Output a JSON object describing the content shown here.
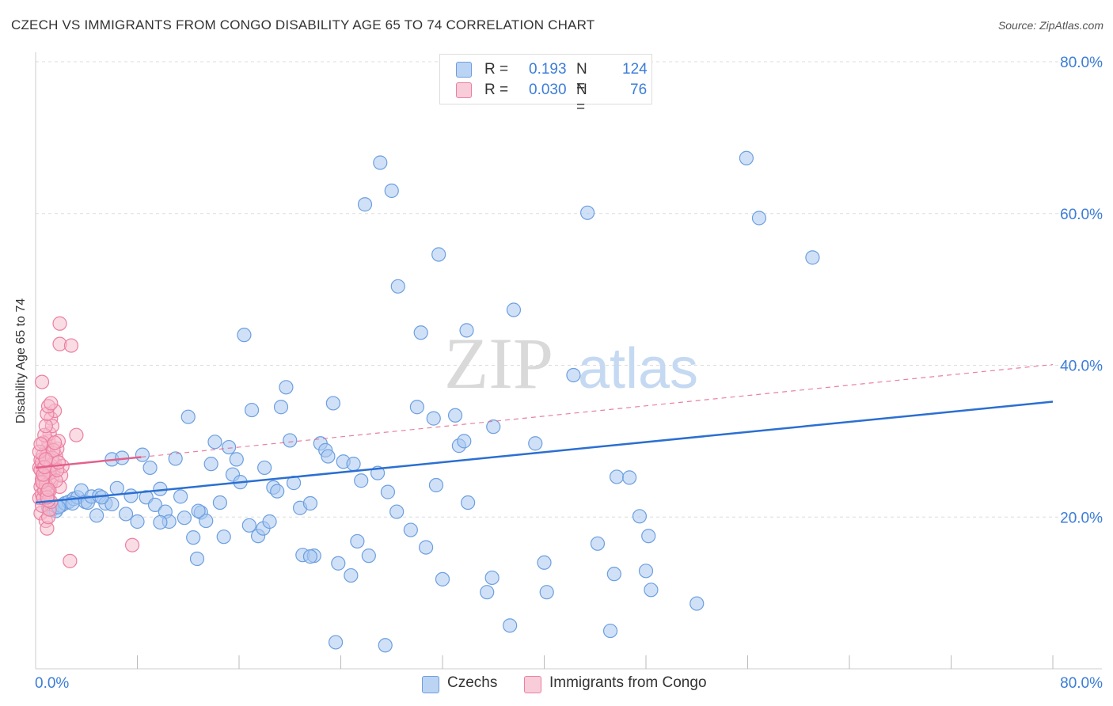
{
  "header": {
    "title": "CZECH VS IMMIGRANTS FROM CONGO DISABILITY AGE 65 TO 74 CORRELATION CHART",
    "source": "Source: ZipAtlas.com"
  },
  "legend": {
    "czech": {
      "r_label": "R =",
      "r_value": "0.193",
      "n_label": "N =",
      "n_value": "124"
    },
    "congo": {
      "r_label": "R =",
      "r_value": "0.030",
      "n_label": "N =",
      "n_value": "76"
    }
  },
  "bottom_legend": {
    "czech": "Czechs",
    "congo": "Immigrants from Congo"
  },
  "watermark": {
    "zip": "ZIP",
    "atlas": "atlas"
  },
  "colors": {
    "czech_fill": "#a9c8f0",
    "czech_stroke": "#6c9fe0",
    "czech_line": "#2b6fd1",
    "congo_fill": "#f6b9cc",
    "congo_stroke": "#ec7fa0",
    "congo_line": "#e3608c",
    "axis_text": "#3b7dd8"
  },
  "chart_data": {
    "type": "scatter",
    "title": "CZECH VS IMMIGRANTS FROM CONGO DISABILITY AGE 65 TO 74 CORRELATION CHART",
    "xlabel": "",
    "ylabel": "Disability Age 65 to 74",
    "xlim": [
      0,
      80
    ],
    "ylim": [
      0,
      80
    ],
    "x_tick_labels": [
      "0.0%",
      "80.0%"
    ],
    "y_tick_labels": [
      "20.0%",
      "40.0%",
      "60.0%",
      "80.0%"
    ],
    "y_ticks": [
      20,
      40,
      60,
      80
    ],
    "grid": true,
    "legend_placement": "top-center",
    "series": [
      {
        "name": "Czechs",
        "r": 0.193,
        "n": 124,
        "trend": {
          "x": [
            0,
            80
          ],
          "y": [
            21.9,
            35.2
          ],
          "style": "solid"
        },
        "points": [
          [
            1,
            21.2
          ],
          [
            1.3,
            21
          ],
          [
            1.6,
            20.8
          ],
          [
            2,
            21.5
          ],
          [
            2.3,
            21.8
          ],
          [
            2.6,
            22
          ],
          [
            3,
            22.4
          ],
          [
            3.3,
            22.6
          ],
          [
            3.6,
            23.5
          ],
          [
            3.9,
            22
          ],
          [
            4.1,
            21.9
          ],
          [
            4.4,
            22.7
          ],
          [
            4.8,
            20.2
          ],
          [
            5,
            22.8
          ],
          [
            5.5,
            21.8
          ],
          [
            6,
            27.6
          ],
          [
            6.4,
            23.8
          ],
          [
            6.8,
            27.8
          ],
          [
            7.1,
            20.4
          ],
          [
            7.5,
            22.8
          ],
          [
            8,
            19.4
          ],
          [
            8.4,
            28.2
          ],
          [
            8.7,
            22.6
          ],
          [
            9,
            26.5
          ],
          [
            9.4,
            21.6
          ],
          [
            9.8,
            23.7
          ],
          [
            10.2,
            20.7
          ],
          [
            10.5,
            19.4
          ],
          [
            11,
            27.7
          ],
          [
            11.4,
            22.7
          ],
          [
            11.7,
            19.9
          ],
          [
            12,
            33.2
          ],
          [
            12.4,
            17.3
          ],
          [
            12.7,
            14.5
          ],
          [
            13,
            20.6
          ],
          [
            13.4,
            19.5
          ],
          [
            13.8,
            27
          ],
          [
            14.1,
            29.9
          ],
          [
            14.5,
            21.9
          ],
          [
            14.8,
            17.4
          ],
          [
            15.2,
            29.2
          ],
          [
            15.5,
            25.6
          ],
          [
            15.8,
            27.6
          ],
          [
            16.1,
            24.6
          ],
          [
            16.4,
            44
          ],
          [
            16.8,
            18.9
          ],
          [
            17,
            34.1
          ],
          [
            17.5,
            17.5
          ],
          [
            17.9,
            18.5
          ],
          [
            18,
            26.5
          ],
          [
            18.4,
            19.4
          ],
          [
            18.7,
            23.9
          ],
          [
            19,
            23.4
          ],
          [
            19.3,
            34.5
          ],
          [
            19.7,
            37.1
          ],
          [
            20,
            30.1
          ],
          [
            20.3,
            24.5
          ],
          [
            20.8,
            21.2
          ],
          [
            21,
            15
          ],
          [
            21.6,
            21.8
          ],
          [
            21.9,
            14.9
          ],
          [
            22.4,
            29.7
          ],
          [
            22.8,
            28.8
          ],
          [
            23,
            28
          ],
          [
            23.4,
            35
          ],
          [
            23.8,
            13.9
          ],
          [
            24.2,
            27.3
          ],
          [
            24.8,
            12.3
          ],
          [
            25,
            27
          ],
          [
            25.3,
            16.8
          ],
          [
            25.6,
            24.8
          ],
          [
            25.9,
            61.2
          ],
          [
            26.2,
            14.9
          ],
          [
            26.9,
            25.8
          ],
          [
            27.1,
            66.7
          ],
          [
            27.5,
            3.1
          ],
          [
            27.7,
            23.3
          ],
          [
            28,
            63
          ],
          [
            28.4,
            20.7
          ],
          [
            28.5,
            50.4
          ],
          [
            29.5,
            18.3
          ],
          [
            30,
            34.5
          ],
          [
            30.3,
            44.3
          ],
          [
            30.7,
            16
          ],
          [
            31.3,
            33
          ],
          [
            31.5,
            24.2
          ],
          [
            31.7,
            54.6
          ],
          [
            32,
            11.8
          ],
          [
            33,
            33.4
          ],
          [
            33.3,
            29.4
          ],
          [
            33.7,
            30
          ],
          [
            33.9,
            44.6
          ],
          [
            34,
            21.9
          ],
          [
            35.5,
            10.1
          ],
          [
            35.9,
            12
          ],
          [
            36,
            31.9
          ],
          [
            37.3,
            5.7
          ],
          [
            37.6,
            47.3
          ],
          [
            39.3,
            29.7
          ],
          [
            40,
            14
          ],
          [
            40.2,
            10.1
          ],
          [
            42.3,
            38.7
          ],
          [
            43.4,
            60.1
          ],
          [
            44.2,
            16.5
          ],
          [
            45.2,
            5
          ],
          [
            45.5,
            12.5
          ],
          [
            45.7,
            25.3
          ],
          [
            46.7,
            25.2
          ],
          [
            47.5,
            20.1
          ],
          [
            48,
            12.9
          ],
          [
            48.2,
            17.5
          ],
          [
            48.4,
            10.4
          ],
          [
            52,
            8.6
          ],
          [
            55.9,
            67.3
          ],
          [
            56.9,
            59.4
          ],
          [
            61.1,
            54.2
          ],
          [
            21.6,
            14.8
          ],
          [
            23.6,
            3.5
          ],
          [
            12.8,
            20.8
          ],
          [
            9.8,
            19.3
          ],
          [
            6,
            21.7
          ],
          [
            5.2,
            22.6
          ],
          [
            2.9,
            21.8
          ],
          [
            1.8,
            21.3
          ]
        ]
      },
      {
        "name": "Immigrants from Congo",
        "r": 0.03,
        "n": 76,
        "trend": {
          "x": [
            0,
            8.3
          ],
          "y": [
            26.5,
            27.9
          ],
          "style": "solid",
          "extension": {
            "x": [
              8.3,
              80
            ],
            "y": [
              27.9,
              40.1
            ],
            "style": "dashed"
          }
        },
        "points": [
          [
            0.3,
            22.5
          ],
          [
            0.4,
            24
          ],
          [
            0.5,
            25
          ],
          [
            0.6,
            26
          ],
          [
            0.7,
            27
          ],
          [
            0.8,
            28
          ],
          [
            0.9,
            29
          ],
          [
            1,
            30
          ],
          [
            1.1,
            31
          ],
          [
            1.2,
            33
          ],
          [
            0.3,
            26.5
          ],
          [
            0.4,
            27.5
          ],
          [
            0.5,
            23
          ],
          [
            0.6,
            24.5
          ],
          [
            0.7,
            25.5
          ],
          [
            0.8,
            26.5
          ],
          [
            0.9,
            27.5
          ],
          [
            1,
            28.5
          ],
          [
            1.1,
            23.5
          ],
          [
            1.2,
            24.5
          ],
          [
            0.4,
            20.5
          ],
          [
            0.5,
            21.5
          ],
          [
            0.6,
            22.5
          ],
          [
            0.7,
            23.5
          ],
          [
            0.8,
            19.5
          ],
          [
            0.9,
            18.5
          ],
          [
            1,
            20
          ],
          [
            1.1,
            21
          ],
          [
            1.2,
            22
          ],
          [
            1.3,
            25
          ],
          [
            1.4,
            26
          ],
          [
            1.5,
            27
          ],
          [
            1.6,
            28
          ],
          [
            1.7,
            29
          ],
          [
            1.8,
            30
          ],
          [
            1.9,
            24
          ],
          [
            2,
            25.5
          ],
          [
            2.1,
            26.7
          ],
          [
            1.5,
            34
          ],
          [
            1.3,
            32
          ],
          [
            0.5,
            37.8
          ],
          [
            1.9,
            45.5
          ],
          [
            1.9,
            42.8
          ],
          [
            2.8,
            42.6
          ],
          [
            3.2,
            30.8
          ],
          [
            7.6,
            16.3
          ],
          [
            2.7,
            14.2
          ],
          [
            0.6,
            29.8
          ],
          [
            0.7,
            30.8
          ],
          [
            0.8,
            32
          ],
          [
            0.9,
            33.6
          ],
          [
            1,
            34.6
          ],
          [
            1.2,
            35
          ],
          [
            0.4,
            26.2
          ],
          [
            0.5,
            27.2
          ],
          [
            0.6,
            28.2
          ],
          [
            0.7,
            25.2
          ],
          [
            0.8,
            24.2
          ],
          [
            0.9,
            23.2
          ],
          [
            1,
            22.2
          ],
          [
            1.1,
            25.8
          ],
          [
            1.2,
            26.8
          ],
          [
            1.3,
            27.8
          ],
          [
            1.4,
            28.8
          ],
          [
            1.5,
            29.8
          ],
          [
            1.6,
            24.8
          ],
          [
            1.7,
            26.2
          ],
          [
            1.8,
            27.2
          ],
          [
            0.3,
            28.6
          ],
          [
            0.4,
            29.6
          ],
          [
            0.5,
            24.6
          ],
          [
            0.6,
            25.6
          ],
          [
            0.7,
            26.6
          ],
          [
            0.8,
            27.6
          ],
          [
            0.9,
            22.6
          ],
          [
            1,
            23.6
          ]
        ]
      }
    ]
  }
}
